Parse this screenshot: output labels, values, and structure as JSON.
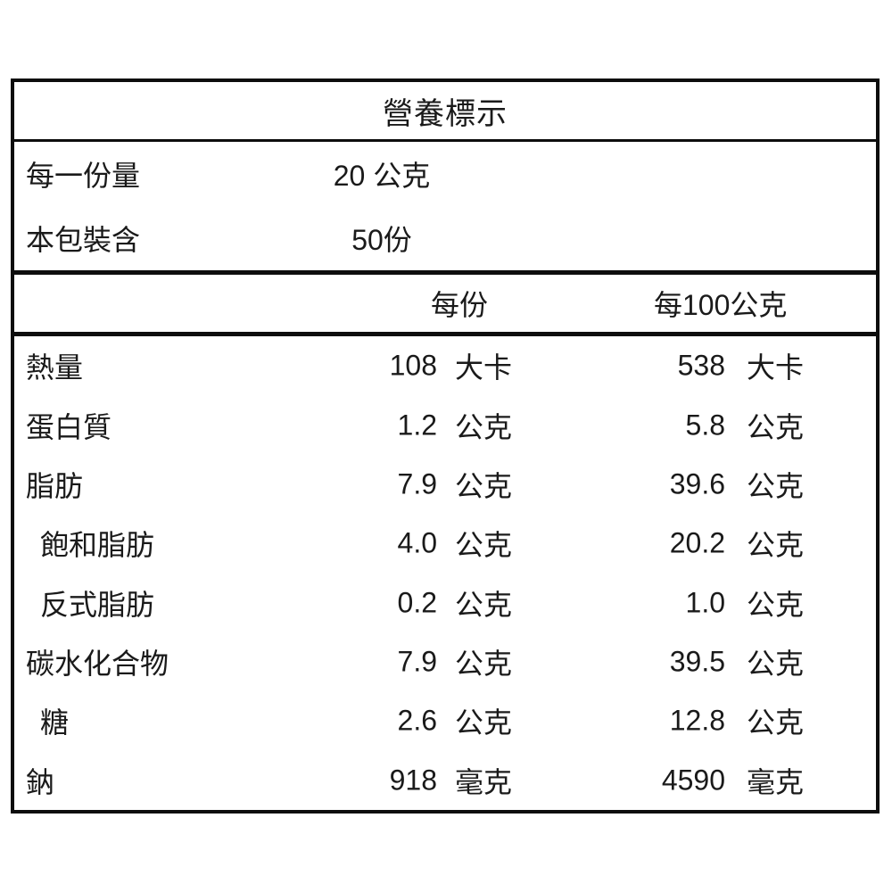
{
  "title": "營養標示",
  "serving_info": {
    "rows": [
      {
        "label": "每一份量",
        "value": "20 公克"
      },
      {
        "label": "本包裝含",
        "value": "50份"
      }
    ]
  },
  "columns": {
    "per_serving": "每份",
    "per_100g": "每100公克"
  },
  "nutrients": [
    {
      "label": "熱量",
      "indent": false,
      "per_serving_value": "108",
      "per_serving_unit": "大卡",
      "per_100g_value": "538",
      "per_100g_unit": "大卡"
    },
    {
      "label": "蛋白質",
      "indent": false,
      "per_serving_value": "1.2",
      "per_serving_unit": "公克",
      "per_100g_value": "5.8",
      "per_100g_unit": "公克"
    },
    {
      "label": "脂肪",
      "indent": false,
      "per_serving_value": "7.9",
      "per_serving_unit": "公克",
      "per_100g_value": "39.6",
      "per_100g_unit": "公克"
    },
    {
      "label": "飽和脂肪",
      "indent": true,
      "per_serving_value": "4.0",
      "per_serving_unit": "公克",
      "per_100g_value": "20.2",
      "per_100g_unit": "公克"
    },
    {
      "label": "反式脂肪",
      "indent": true,
      "per_serving_value": "0.2",
      "per_serving_unit": "公克",
      "per_100g_value": "1.0",
      "per_100g_unit": "公克"
    },
    {
      "label": "碳水化合物",
      "indent": false,
      "per_serving_value": "7.9",
      "per_serving_unit": "公克",
      "per_100g_value": "39.5",
      "per_100g_unit": "公克"
    },
    {
      "label": "糖",
      "indent": true,
      "per_serving_value": "2.6",
      "per_serving_unit": "公克",
      "per_100g_value": "12.8",
      "per_100g_unit": "公克"
    },
    {
      "label": "鈉",
      "indent": false,
      "per_serving_value": "918",
      "per_serving_unit": "毫克",
      "per_100g_value": "4590",
      "per_100g_unit": "毫克"
    }
  ],
  "colors": {
    "border": "#0d0d0d",
    "text": "#1a1a1a",
    "background": "#ffffff"
  }
}
